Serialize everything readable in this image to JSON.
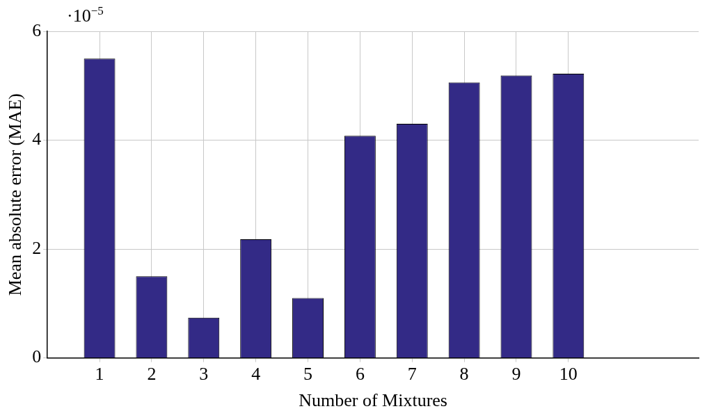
{
  "chart_data": {
    "type": "bar",
    "xlabel": "Number of Mixtures",
    "ylabel": "Mean absolute error (MAE)",
    "annotations": [
      "·10$^{−5}$"
    ],
    "x": [
      1,
      2,
      3,
      4,
      5,
      6,
      7,
      8,
      9,
      10
    ],
    "values": [
      5.5,
      1.5,
      0.74,
      2.18,
      1.1,
      4.08,
      4.3,
      5.06,
      5.19,
      5.22
    ],
    "color": "#332a86",
    "xlim": [
      0,
      12.5
    ],
    "xticks": [
      1,
      2,
      3,
      4,
      5,
      6,
      7,
      8,
      9,
      10
    ],
    "ylim": [
      0,
      6
    ],
    "yticks": [
      0,
      2,
      4,
      6
    ],
    "grid": true,
    "legend": false
  }
}
